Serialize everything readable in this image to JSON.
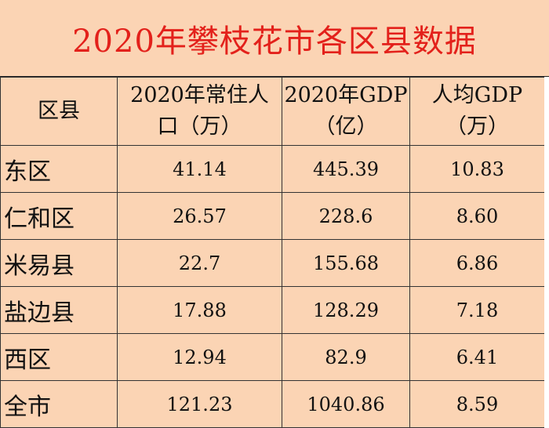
{
  "title": "2020年攀枝花市各区县数据",
  "headers": {
    "district": "区县",
    "population_line1": "2020年常住人",
    "population_line2": "口（万）",
    "gdp_line1": "2020年GDP",
    "gdp_line2": "（亿）",
    "per_capita_line1": "人均GDP",
    "per_capita_line2": "（万）"
  },
  "rows": [
    {
      "name": "东区",
      "population": "41.14",
      "gdp": "445.39",
      "per_capita": "10.83"
    },
    {
      "name": "仁和区",
      "population": "26.57",
      "gdp": "228.6",
      "per_capita": "8.60"
    },
    {
      "name": "米易县",
      "population": "22.7",
      "gdp": "155.68",
      "per_capita": "6.86"
    },
    {
      "name": "盐边县",
      "population": "17.88",
      "gdp": "128.29",
      "per_capita": "7.18"
    },
    {
      "name": "西区",
      "population": "12.94",
      "gdp": "82.9",
      "per_capita": "6.41"
    },
    {
      "name": "全市",
      "population": "121.23",
      "gdp": "1040.86",
      "per_capita": "8.59"
    }
  ],
  "colors": {
    "background": "#fbd4b4",
    "title_text": "#e3211b",
    "grid_line": "#333333"
  }
}
